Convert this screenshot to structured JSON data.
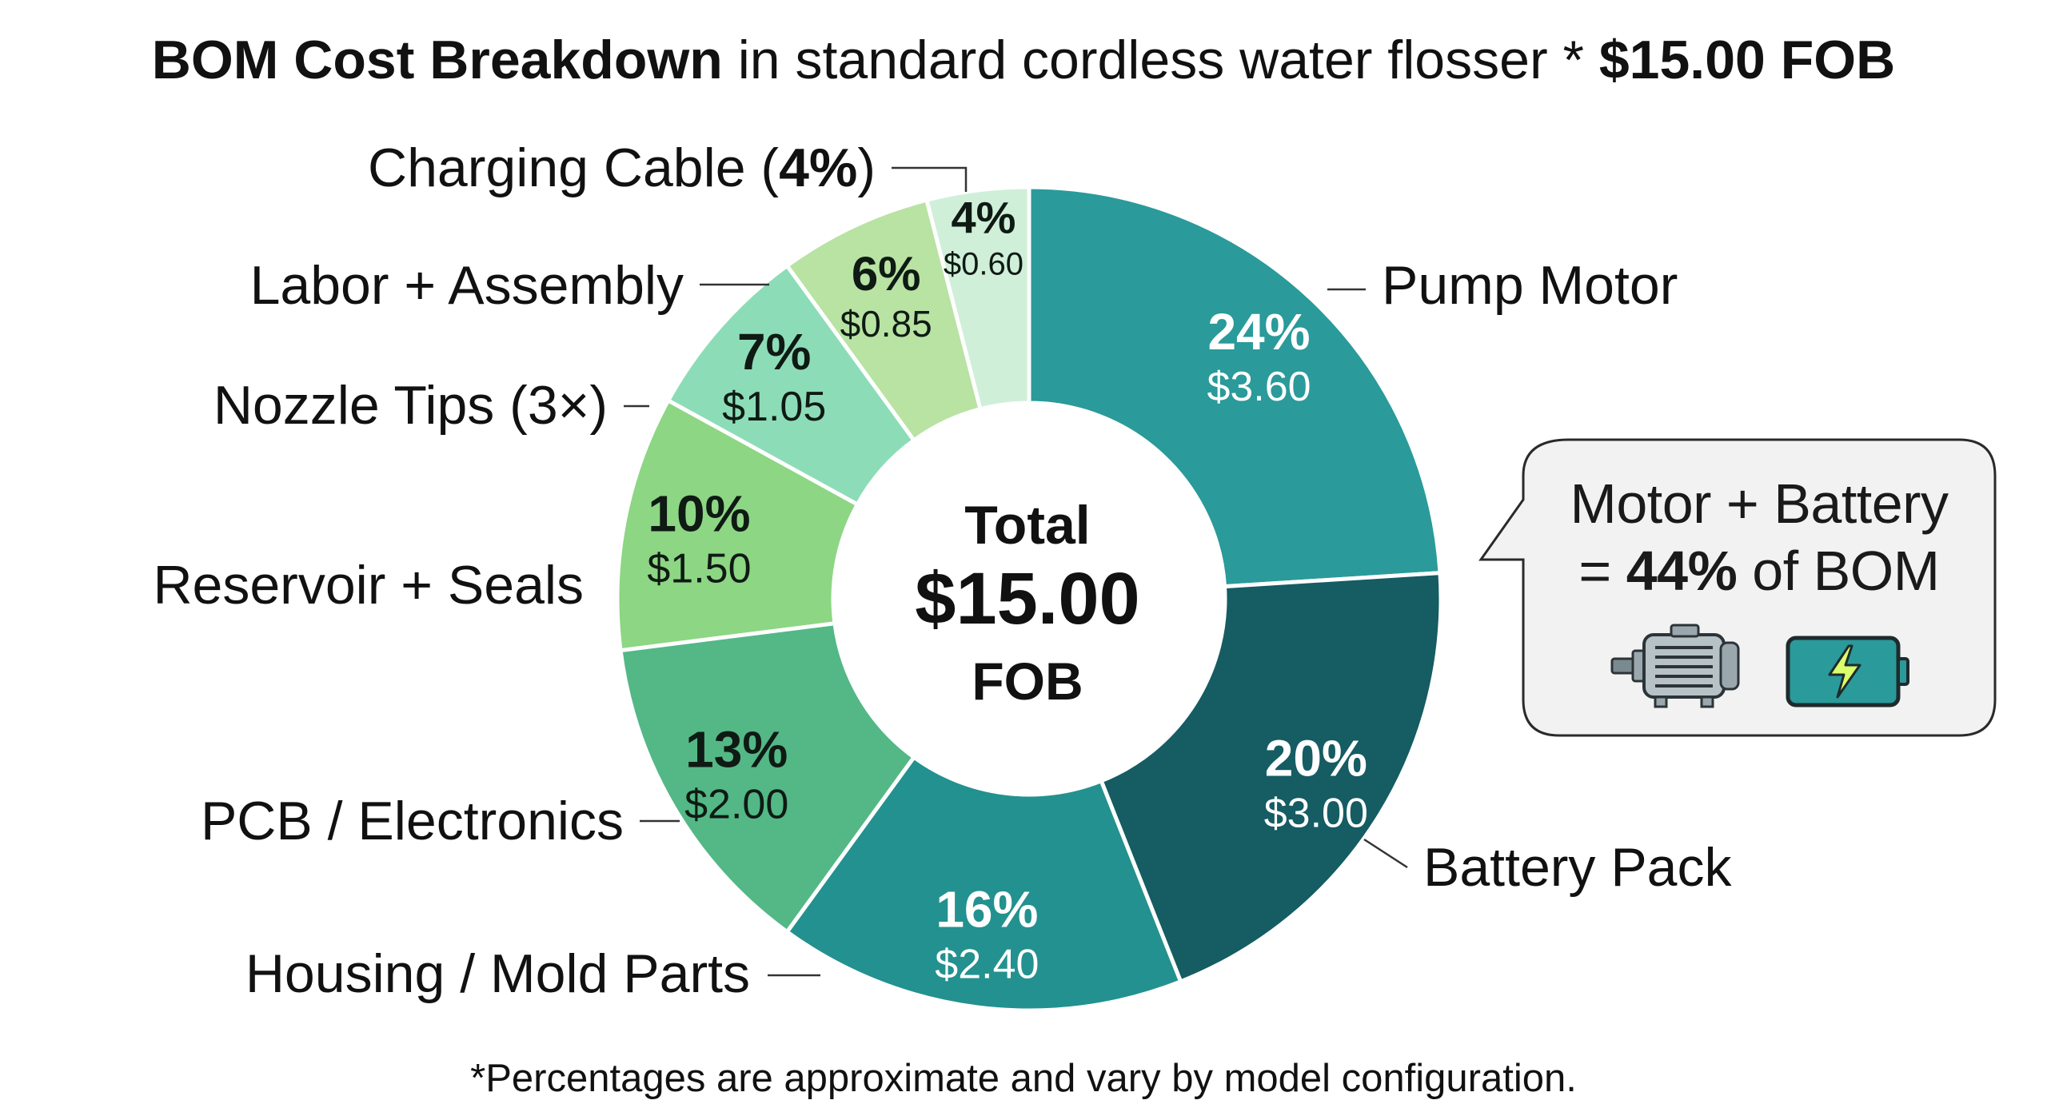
{
  "title": {
    "bold_part": "BOM Cost Breakdown",
    "middle_part": " in standard cordless water flosser * ",
    "bold_tail": "$15.00 FOB"
  },
  "center": {
    "line1": "Total",
    "line2": "$15.00",
    "line3": "FOB"
  },
  "callout": {
    "line1": "Motor + Battery",
    "line2_prefix": "= ",
    "line2_bold": "44%",
    "line2_suffix": " of BOM",
    "icons": [
      "motor-icon",
      "battery-icon"
    ]
  },
  "footnote": "*Percentages are approximate and vary by model configuration.",
  "chart_data": {
    "type": "pie",
    "donut": true,
    "total": 15.0,
    "currency": "$",
    "slices": [
      {
        "label": "Pump Motor",
        "percent": 24,
        "value": 3.6,
        "value_text": "$3.60",
        "color": "#2a9a9a",
        "text_color": "#ffffff"
      },
      {
        "label": "Battery Pack",
        "percent": 20,
        "value": 3.0,
        "value_text": "$3.00",
        "color": "#155c63",
        "text_color": "#ffffff"
      },
      {
        "label": "Housing / Mold Parts",
        "percent": 16,
        "value": 2.4,
        "value_text": "$2.40",
        "color": "#23918f",
        "text_color": "#ffffff"
      },
      {
        "label": "PCB / Electronics",
        "percent": 13,
        "value": 2.0,
        "value_text": "$2.00",
        "color": "#53b886",
        "text_color": "#0f1a14"
      },
      {
        "label": "Reservoir + Seals",
        "percent": 10,
        "value": 1.5,
        "value_text": "$1.50",
        "color": "#8dd684",
        "text_color": "#0f1a14"
      },
      {
        "label": "Nozzle Tips (3×)",
        "percent": 7,
        "value": 1.05,
        "value_text": "$1.05",
        "color": "#8ddcb8",
        "text_color": "#0f1a14"
      },
      {
        "label": "Labor + Assembly",
        "percent": 6,
        "value": 0.85,
        "value_text": "$0.85",
        "color": "#b8e3a3",
        "text_color": "#0f1a14"
      },
      {
        "label": "Charging Cable",
        "label_suffix": " (4%)",
        "percent": 4,
        "value": 0.6,
        "value_text": "$0.60",
        "color": "#cfefd9",
        "text_color": "#0f1a14"
      }
    ]
  }
}
